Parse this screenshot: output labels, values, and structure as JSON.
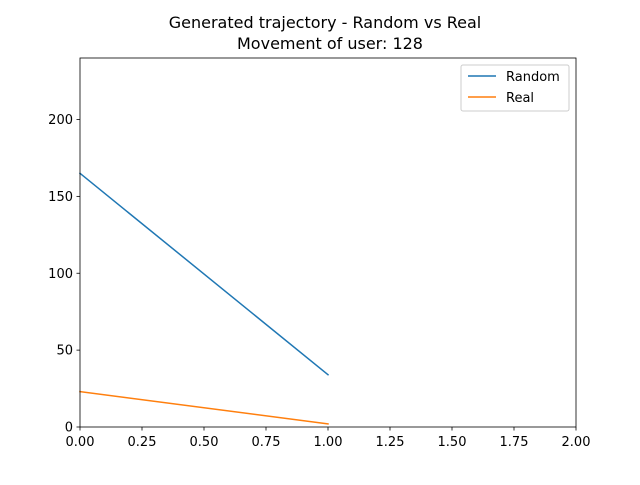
{
  "chart_data": {
    "type": "line",
    "title": "Generated trajectory - Random vs Real",
    "subtitle": "Movement of user: 128",
    "xlabel": "",
    "ylabel": "",
    "xlim": [
      0,
      2
    ],
    "ylim": [
      0,
      240
    ],
    "xticks": [
      0.0,
      0.25,
      0.5,
      0.75,
      1.0,
      1.25,
      1.5,
      1.75,
      2.0
    ],
    "xtick_labels": [
      "0.00",
      "0.25",
      "0.50",
      "0.75",
      "1.00",
      "1.25",
      "1.50",
      "1.75",
      "2.00"
    ],
    "yticks": [
      0,
      50,
      100,
      150,
      200
    ],
    "ytick_labels": [
      "0",
      "50",
      "100",
      "150",
      "200"
    ],
    "grid": false,
    "legend_position": "top-right",
    "series": [
      {
        "name": "Random",
        "color": "#1f77b4",
        "x": [
          0,
          1
        ],
        "y": [
          165,
          34
        ]
      },
      {
        "name": "Real",
        "color": "#ff7f0e",
        "x": [
          0,
          1
        ],
        "y": [
          23,
          2
        ]
      }
    ]
  }
}
